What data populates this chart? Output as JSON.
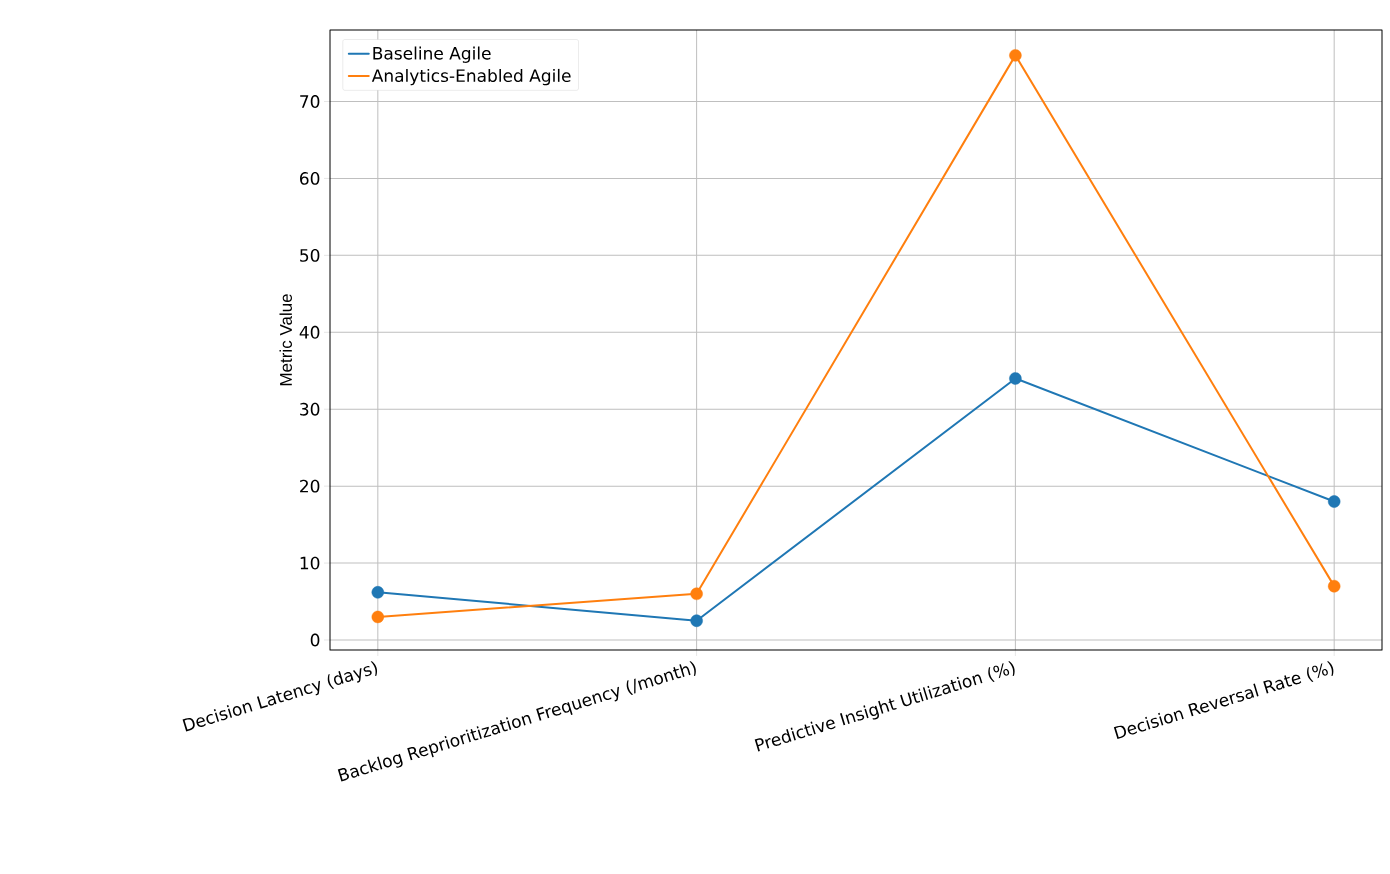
{
  "chart_data": {
    "type": "line",
    "categories": [
      "Decision Latency (days)",
      "Backlog Reprioritization Frequency (/month)",
      "Predictive Insight Utilization (%)",
      "Decision Reversal Rate (%)"
    ],
    "series": [
      {
        "name": "Baseline Agile",
        "color": "#1f77b4",
        "values": [
          6.2,
          2.5,
          34,
          18
        ]
      },
      {
        "name": "Analytics-Enabled Agile",
        "color": "#ff7f0e",
        "values": [
          3,
          6,
          76,
          7
        ]
      }
    ],
    "ylabel": "Metric Value",
    "ylim": [
      -1.3,
      79.3
    ],
    "yticks": [
      0,
      10,
      20,
      30,
      40,
      50,
      60,
      70
    ],
    "grid": true,
    "legend": "top left",
    "marker": "circle"
  }
}
